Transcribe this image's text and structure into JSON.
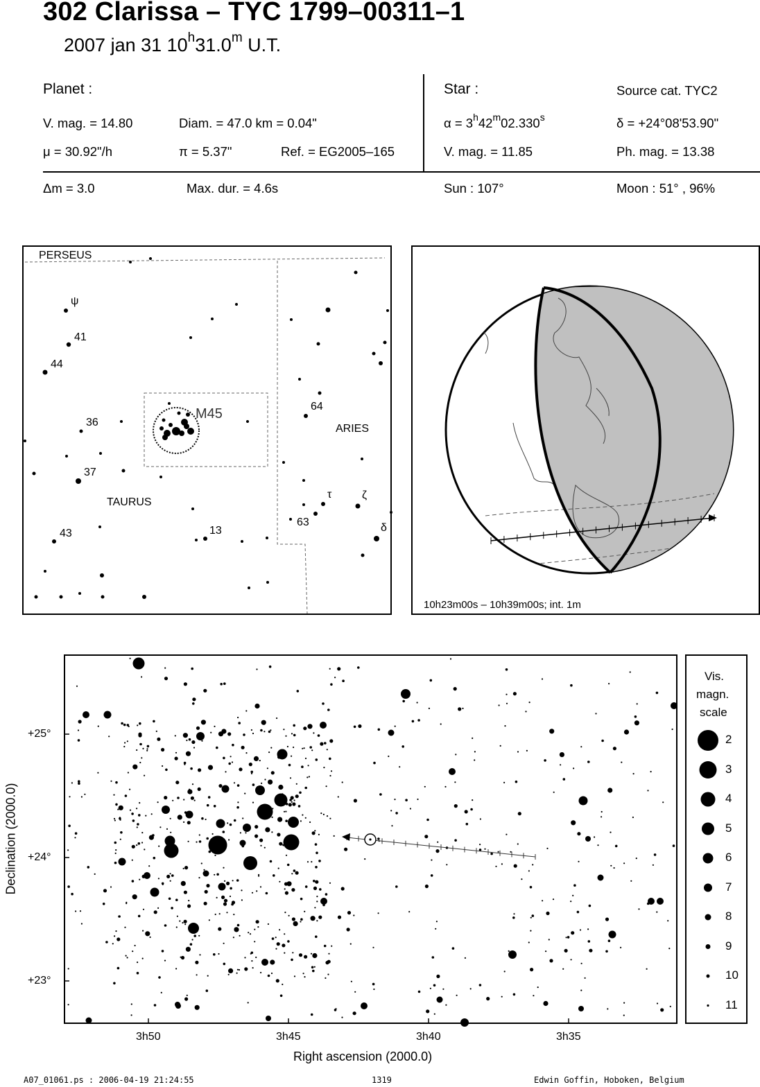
{
  "header": {
    "title": "302 Clarissa  –  TYC 1799–00311–1",
    "date_prefix": "2007 jan 31  10",
    "time_h": "h",
    "time_min": "31.0",
    "time_m": "m",
    "time_suffix": " U.T."
  },
  "planet": {
    "heading": "Planet :",
    "vmag": "V. mag. = 14.80",
    "diam": "Diam. = 47.0 km = 0.04\"",
    "mu": "μ =  30.92\"/h",
    "pi": "π =  5.37\"",
    "ref": "Ref. = EG2005–165"
  },
  "star": {
    "heading": "Star :",
    "source": "Source cat.  TYC2",
    "alpha_prefix": "α =  3",
    "alpha_h": "h",
    "alpha_mid": "42",
    "alpha_m": "m",
    "alpha_sec": "02.330",
    "alpha_s": "s",
    "delta": "δ = +24°08'53.90\"",
    "vmag": "V. mag. = 11.85",
    "phmag": "Ph. mag. = 13.38"
  },
  "event": {
    "dm": "Δm = 3.0",
    "maxdur": "Max. dur. = 4.6s",
    "sun": "Sun : 107°",
    "moon": "Moon :  51° , 96%"
  },
  "skymap": {
    "labels": {
      "perseus": "PERSEUS",
      "taurus": "TAURUS",
      "aries": "ARIES",
      "m45": "M45",
      "psi": "ψ",
      "s41": "41",
      "s44": "44",
      "s36": "36",
      "s37": "37",
      "s43": "43",
      "s13": "13",
      "s64": "64",
      "s63": "63",
      "tau": "τ",
      "zeta": "ζ",
      "delta": "δ"
    }
  },
  "globe": {
    "caption": "10h23m00s – 10h39m00s; int.  1m"
  },
  "starchart": {
    "y_ticks": [
      "+25°",
      "+24°",
      "+23°"
    ],
    "x_ticks": [
      "3h50",
      "3h45",
      "3h40",
      "3h35"
    ],
    "xlabel": "Right ascension (2000.0)",
    "ylabel": "Declination (2000.0)"
  },
  "legend": {
    "title_lines": [
      "Vis.",
      "magn.",
      "scale"
    ],
    "mags": [
      "2",
      "3",
      "4",
      "5",
      "6",
      "7",
      "8",
      "9",
      "10",
      "11"
    ]
  },
  "footer": {
    "file": "A07_01061.ps : 2006-04-19 21:24:55",
    "page": "1319",
    "author": "Edwin Goffin, Hoboken, Belgium"
  }
}
